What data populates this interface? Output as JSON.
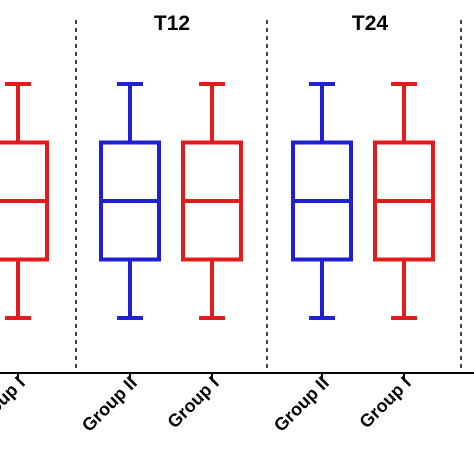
{
  "chart_data": {
    "type": "box",
    "panels": [
      {
        "title": "",
        "boxes": [
          {
            "label": "Group I",
            "color": "#e41a1c",
            "min": 0,
            "q1": 1,
            "median": 2,
            "q3": 3,
            "max": 4
          }
        ]
      },
      {
        "title": "T12",
        "boxes": [
          {
            "label": "Group II",
            "color": "#1f1fd6",
            "min": 0,
            "q1": 1,
            "median": 2,
            "q3": 3,
            "max": 4
          },
          {
            "label": "Group I",
            "color": "#e41a1c",
            "min": 0,
            "q1": 1,
            "median": 2,
            "q3": 3,
            "max": 4
          }
        ]
      },
      {
        "title": "T24",
        "boxes": [
          {
            "label": "Group II",
            "color": "#1f1fd6",
            "min": 0,
            "q1": 1,
            "median": 2,
            "q3": 3,
            "max": 4
          },
          {
            "label": "Group I",
            "color": "#e41a1c",
            "min": 0,
            "q1": 1,
            "median": 2,
            "q3": 3,
            "max": 4
          }
        ]
      }
    ],
    "grid": false,
    "legend": "none"
  }
}
